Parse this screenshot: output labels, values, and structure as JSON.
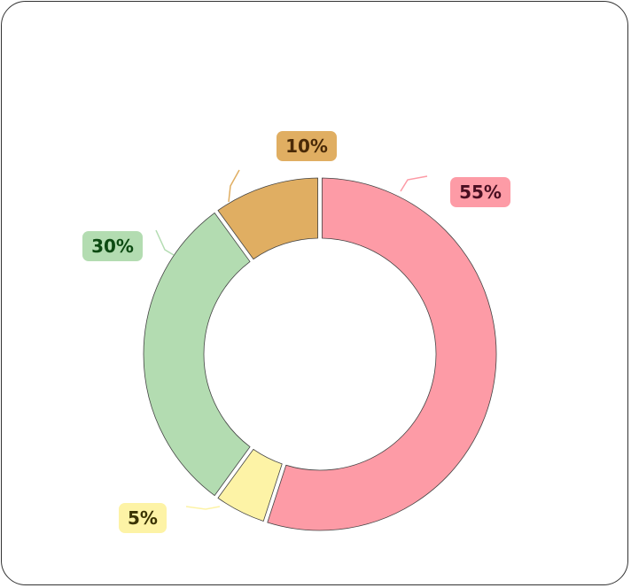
{
  "chart_data": {
    "type": "donut",
    "categories": [
      null,
      null,
      null,
      null
    ],
    "values": [
      55,
      5,
      30,
      10
    ],
    "value_labels": [
      "55%",
      "5%",
      "30%",
      "10%"
    ],
    "colors": [
      "#fd9ba6",
      "#fdf3a6",
      "#b3dcb1",
      "#e0ae62"
    ],
    "label_text_colors": [
      "#4a0f22",
      "#3a3300",
      "#0d4a12",
      "#4a2a08"
    ]
  }
}
